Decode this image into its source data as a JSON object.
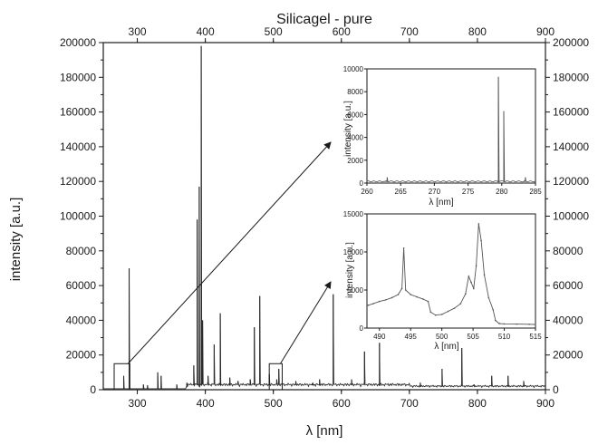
{
  "chart_data": [
    {
      "type": "line",
      "title": "Silicagel - pure",
      "xlabel": "λ [nm]",
      "ylabel": "intensity [a.u.]",
      "xlim": [
        250,
        900
      ],
      "ylim": [
        0,
        200000
      ],
      "x_ticks": [
        300,
        400,
        500,
        600,
        700,
        800,
        900
      ],
      "x_ticks_top": [
        300,
        400,
        500,
        600,
        700,
        800,
        900
      ],
      "y_ticks": [
        0,
        20000,
        40000,
        60000,
        80000,
        100000,
        120000,
        140000,
        160000,
        180000,
        200000
      ],
      "grid": false,
      "color": "#2b2b2b",
      "peaks": [
        {
          "x": 280,
          "y": 8000
        },
        {
          "x": 288,
          "y": 70000
        },
        {
          "x": 309,
          "y": 3000
        },
        {
          "x": 315,
          "y": 2500
        },
        {
          "x": 330,
          "y": 10000
        },
        {
          "x": 335,
          "y": 8000
        },
        {
          "x": 358,
          "y": 3000
        },
        {
          "x": 373,
          "y": 4000
        },
        {
          "x": 383,
          "y": 14000
        },
        {
          "x": 388,
          "y": 98000
        },
        {
          "x": 391,
          "y": 117000
        },
        {
          "x": 394,
          "y": 198000
        },
        {
          "x": 396,
          "y": 40000
        },
        {
          "x": 404,
          "y": 8000
        },
        {
          "x": 413,
          "y": 26000
        },
        {
          "x": 422,
          "y": 44000
        },
        {
          "x": 436,
          "y": 7000
        },
        {
          "x": 448,
          "y": 5000
        },
        {
          "x": 466,
          "y": 6000
        },
        {
          "x": 472,
          "y": 36000
        },
        {
          "x": 480,
          "y": 54000
        },
        {
          "x": 494,
          "y": 9000
        },
        {
          "x": 505,
          "y": 6000
        },
        {
          "x": 508,
          "y": 12000
        },
        {
          "x": 533,
          "y": 5000
        },
        {
          "x": 558,
          "y": 4000
        },
        {
          "x": 568,
          "y": 6000
        },
        {
          "x": 588,
          "y": 55000
        },
        {
          "x": 615,
          "y": 6000
        },
        {
          "x": 634,
          "y": 22000
        },
        {
          "x": 656,
          "y": 27000
        },
        {
          "x": 672,
          "y": 3000
        },
        {
          "x": 716,
          "y": 4000
        },
        {
          "x": 748,
          "y": 12000
        },
        {
          "x": 777,
          "y": 24000
        },
        {
          "x": 795,
          "y": 3000
        },
        {
          "x": 821,
          "y": 8000
        },
        {
          "x": 845,
          "y": 8000
        },
        {
          "x": 868,
          "y": 5000
        }
      ],
      "zoom_boxes": [
        {
          "x_range": [
            266,
            289
          ],
          "y_range": [
            0,
            15000
          ]
        },
        {
          "x_range": [
            494,
            513
          ],
          "y_range": [
            0,
            15000
          ]
        }
      ]
    },
    {
      "type": "line",
      "xlabel": "λ [nm]",
      "ylabel": "intensity [a.u.]",
      "xlim": [
        260,
        285
      ],
      "ylim": [
        0,
        10000
      ],
      "x_ticks": [
        260,
        265,
        270,
        275,
        280,
        285
      ],
      "y_ticks": [
        0,
        2000,
        4000,
        6000,
        8000,
        10000
      ],
      "baseline": 150,
      "peaks": [
        {
          "x": 263,
          "y": 500
        },
        {
          "x": 279.5,
          "y": 9300
        },
        {
          "x": 280.3,
          "y": 6300
        },
        {
          "x": 283.5,
          "y": 500
        }
      ]
    },
    {
      "type": "line",
      "xlabel": "λ [nm]",
      "ylabel": "intensity [a.u.]",
      "xlim": [
        488,
        515
      ],
      "ylim": [
        0,
        15000
      ],
      "x_ticks": [
        490,
        495,
        500,
        505,
        510,
        515
      ],
      "y_ticks": [
        0,
        5000,
        10000,
        15000
      ],
      "points": [
        [
          488.2,
          3000
        ],
        [
          489,
          3200
        ],
        [
          490,
          3500
        ],
        [
          491,
          3700
        ],
        [
          492,
          4000
        ],
        [
          493,
          4400
        ],
        [
          493.6,
          5200
        ],
        [
          493.9,
          10500
        ],
        [
          494.2,
          5000
        ],
        [
          495,
          4400
        ],
        [
          496,
          4100
        ],
        [
          497,
          3800
        ],
        [
          497.8,
          3500
        ],
        [
          498.2,
          2100
        ],
        [
          499,
          1700
        ],
        [
          500,
          1800
        ],
        [
          501,
          2200
        ],
        [
          502,
          2600
        ],
        [
          503,
          3200
        ],
        [
          503.8,
          4500
        ],
        [
          504.3,
          6800
        ],
        [
          504.7,
          6000
        ],
        [
          505.1,
          5200
        ],
        [
          505.5,
          8200
        ],
        [
          505.9,
          13700
        ],
        [
          506.3,
          11500
        ],
        [
          506.8,
          7000
        ],
        [
          507.5,
          4000
        ],
        [
          508.2,
          2400
        ],
        [
          508.6,
          1000
        ],
        [
          509.2,
          600
        ],
        [
          510,
          550
        ],
        [
          512,
          520
        ],
        [
          514,
          500
        ],
        [
          515,
          480
        ]
      ]
    }
  ]
}
